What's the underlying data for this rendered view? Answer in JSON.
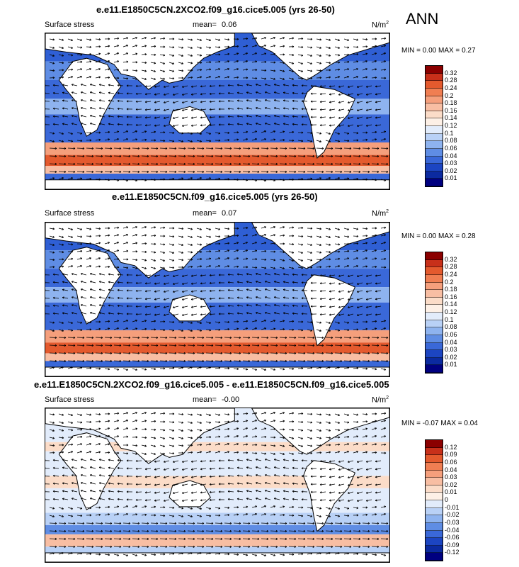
{
  "season": "ANN",
  "panels": [
    {
      "title": "e.e11.E1850C5CN.2XCO2.f09_g16.cice5.005 (yrs 26-50)",
      "variable": "Surface stress",
      "mean_label": "mean=",
      "mean_value": "0.06",
      "units_base": "N/m",
      "units_exp": "2",
      "min_label": "MIN =",
      "min_value": "0.00",
      "max_label": "MAX =",
      "max_value": "0.27",
      "colorbar": {
        "labels": [
          "0.32",
          "0.28",
          "0.24",
          "0.2",
          "0.18",
          "0.16",
          "0.14",
          "0.12",
          "0.1",
          "0.08",
          "0.06",
          "0.04",
          "0.03",
          "0.02",
          "0.01"
        ],
        "colors": [
          "#8b0000",
          "#c8301a",
          "#e45a2e",
          "#f07e52",
          "#f59f7c",
          "#f8bea3",
          "#fbdcc8",
          "#fdf0e6",
          "#e2ecfb",
          "#b9d1f6",
          "#8eb3ef",
          "#5f8de4",
          "#3a68d8",
          "#1c45c2",
          "#0b2aa0",
          "#000080"
        ]
      },
      "field": "mean"
    },
    {
      "title": "e.e11.E1850C5CN.f09_g16.cice5.005 (yrs 26-50)",
      "variable": "Surface stress",
      "mean_label": "mean=",
      "mean_value": "0.07",
      "units_base": "N/m",
      "units_exp": "2",
      "min_label": "MIN =",
      "min_value": "0.00",
      "max_label": "MAX =",
      "max_value": "0.28",
      "colorbar": {
        "labels": [
          "0.32",
          "0.28",
          "0.24",
          "0.2",
          "0.18",
          "0.16",
          "0.14",
          "0.12",
          "0.1",
          "0.08",
          "0.06",
          "0.04",
          "0.03",
          "0.02",
          "0.01"
        ],
        "colors": [
          "#8b0000",
          "#c8301a",
          "#e45a2e",
          "#f07e52",
          "#f59f7c",
          "#f8bea3",
          "#fbdcc8",
          "#fdf0e6",
          "#e2ecfb",
          "#b9d1f6",
          "#8eb3ef",
          "#5f8de4",
          "#3a68d8",
          "#1c45c2",
          "#0b2aa0",
          "#000080"
        ]
      },
      "field": "mean"
    },
    {
      "title": "e.e11.E1850C5CN.2XCO2.f09_g16.cice5.005 - e.e11.E1850C5CN.f09_g16.cice5.005",
      "variable": "Surface stress",
      "mean_label": "mean=",
      "mean_value": "-0.00",
      "units_base": "N/m",
      "units_exp": "2",
      "min_label": "MIN =",
      "min_value": "-0.07",
      "max_label": "MAX =",
      "max_value": "0.04",
      "colorbar": {
        "labels": [
          "0.12",
          "0.09",
          "0.06",
          "0.04",
          "0.03",
          "0.02",
          "0.01",
          "0",
          "-0.01",
          "-0.02",
          "-0.03",
          "-0.04",
          "-0.06",
          "-0.09",
          "-0.12"
        ],
        "colors": [
          "#8b0000",
          "#c8301a",
          "#e45a2e",
          "#f07e52",
          "#f59f7c",
          "#f8bea3",
          "#fbdcc8",
          "#fdf0e6",
          "#e2ecfb",
          "#b9d1f6",
          "#8eb3ef",
          "#5f8de4",
          "#3a68d8",
          "#1c45c2",
          "#0b2aa0",
          "#000080"
        ]
      },
      "field": "diff"
    }
  ]
}
